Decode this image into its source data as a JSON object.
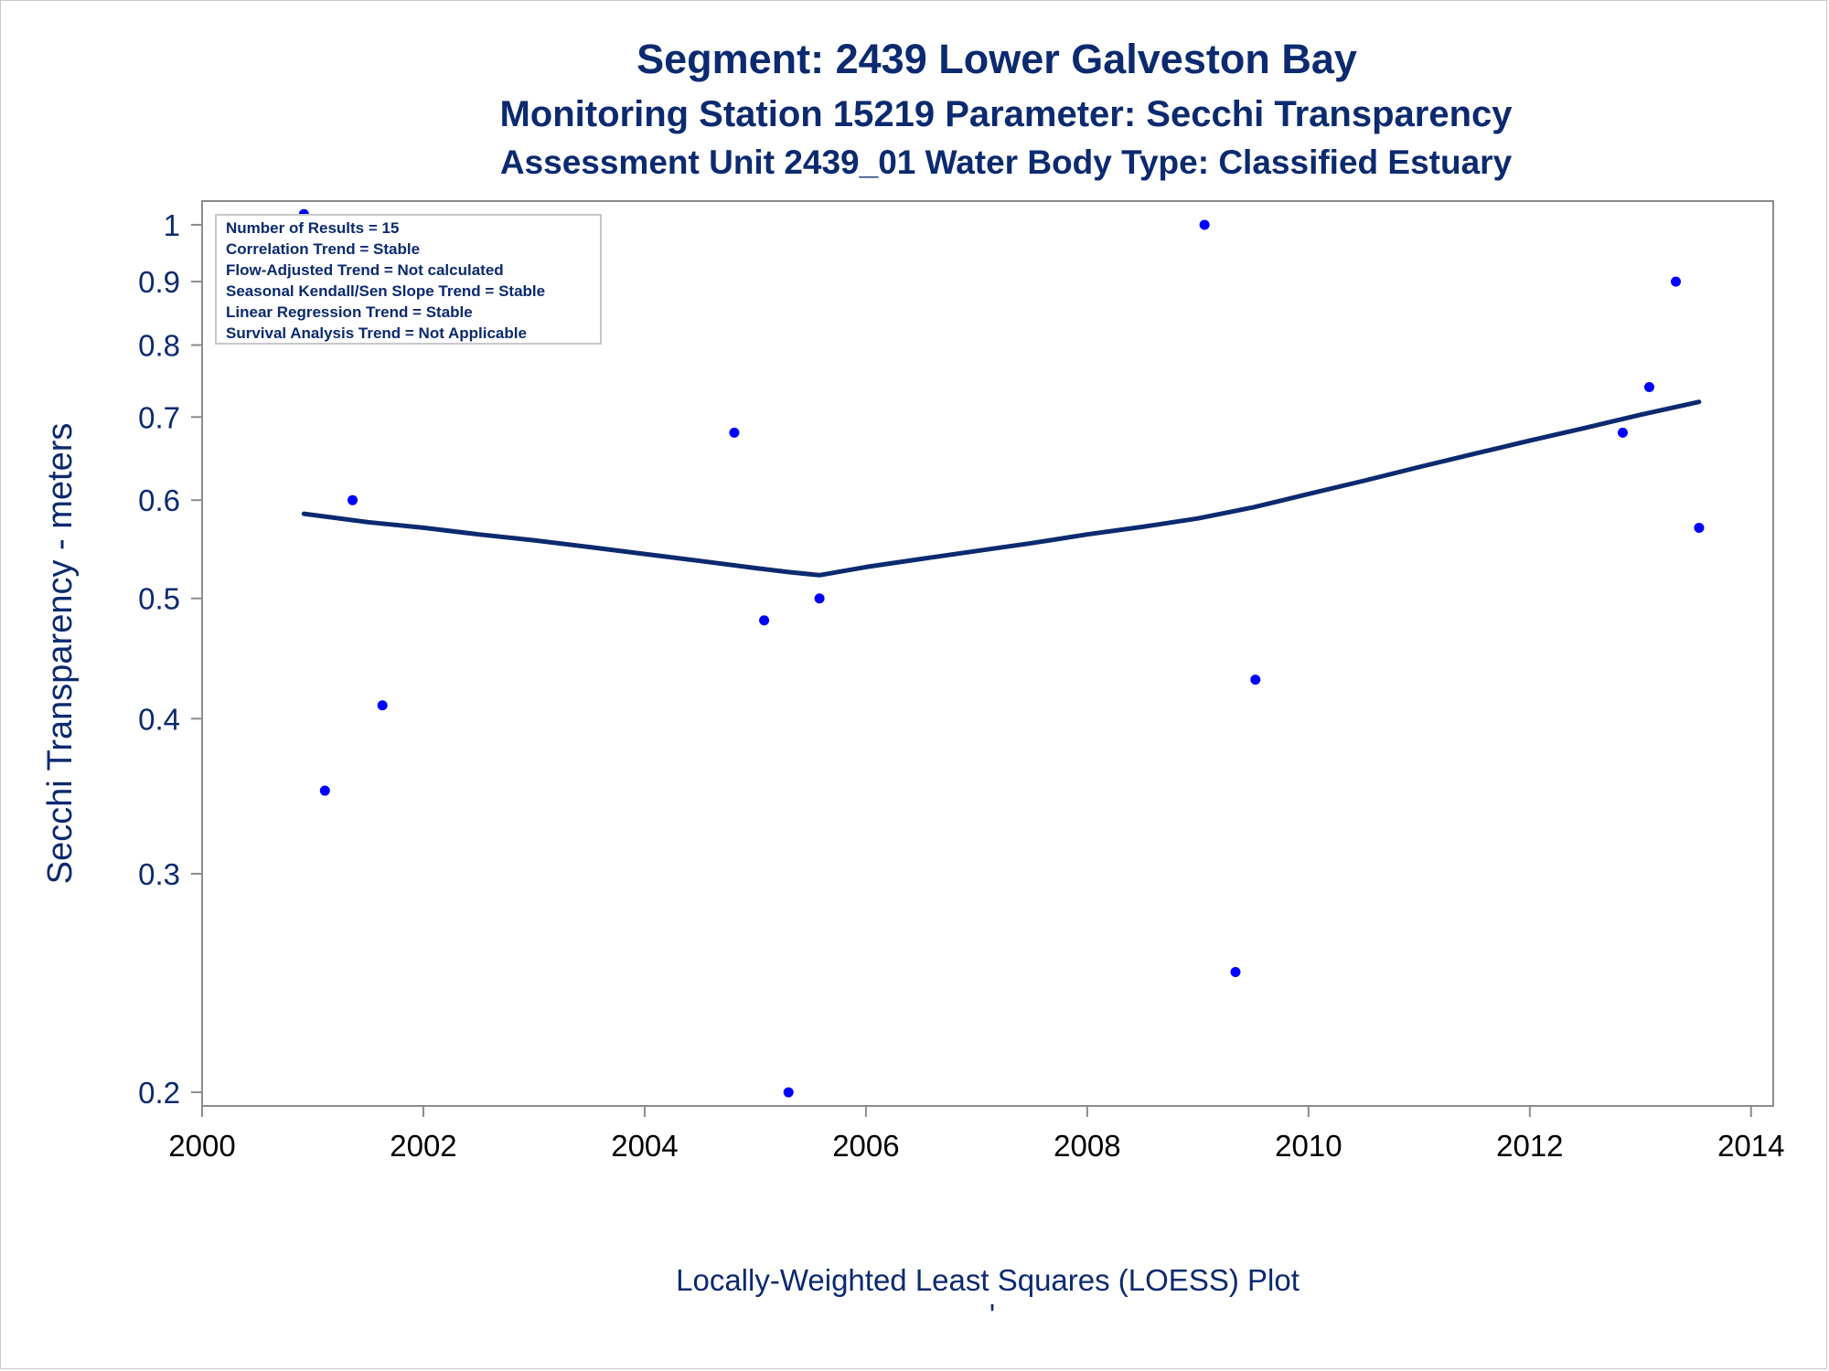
{
  "chart_data": {
    "type": "scatter",
    "title": "Segment: 2439  Lower Galveston Bay",
    "subtitle": "Monitoring Station 15219 Parameter: Secchi Transparency",
    "subtitle2": "Assessment Unit 2439_01   Water Body Type: Classified Estuary",
    "ylabel": "Secchi Transparency - meters",
    "footnote": "Locally-Weighted Least Squares (LOESS) Plot",
    "footnote_mark": "'",
    "xlim": [
      2000,
      2014.2
    ],
    "ylim": [
      0.195,
      1.045
    ],
    "y_scale": "log",
    "x_ticks": [
      2000,
      2002,
      2004,
      2006,
      2008,
      2010,
      2012,
      2014
    ],
    "x_tick_labels": [
      "2000",
      "2002",
      "2004",
      "2006",
      "2008",
      "2010",
      "2012",
      "2014"
    ],
    "y_ticks": [
      0.2,
      0.3,
      0.4,
      0.5,
      0.6,
      0.7,
      0.8,
      0.9,
      1
    ],
    "y_tick_labels": [
      "0.2",
      "0.3",
      "0.4",
      "0.5",
      "0.6",
      "0.7",
      "0.8",
      "0.9",
      "1"
    ],
    "grid": false,
    "colors": {
      "points": "#0000ff",
      "loess": "#0b2a6f",
      "text": "#0b2a6f",
      "axis": "#8c8c8c"
    },
    "points": [
      {
        "x": 2000.92,
        "y": 1.02
      },
      {
        "x": 2001.11,
        "y": 0.35
      },
      {
        "x": 2001.36,
        "y": 0.6
      },
      {
        "x": 2001.63,
        "y": 0.41
      },
      {
        "x": 2004.81,
        "y": 0.68
      },
      {
        "x": 2005.08,
        "y": 0.48
      },
      {
        "x": 2005.3,
        "y": 0.2
      },
      {
        "x": 2005.58,
        "y": 0.5
      },
      {
        "x": 2009.06,
        "y": 1.0
      },
      {
        "x": 2009.34,
        "y": 0.25
      },
      {
        "x": 2009.52,
        "y": 0.43
      },
      {
        "x": 2012.84,
        "y": 0.68
      },
      {
        "x": 2013.08,
        "y": 0.74
      },
      {
        "x": 2013.32,
        "y": 0.9
      },
      {
        "x": 2013.53,
        "y": 0.57
      }
    ],
    "loess": {
      "x": [
        2000.92,
        2001.5,
        2002.0,
        2002.5,
        2003.0,
        2003.5,
        2004.0,
        2004.5,
        2005.0,
        2005.3,
        2005.58,
        2006.0,
        2006.5,
        2007.0,
        2007.5,
        2008.0,
        2008.5,
        2009.0,
        2009.5,
        2010.0,
        2010.5,
        2011.0,
        2011.5,
        2012.0,
        2012.5,
        2013.0,
        2013.53
      ],
      "y": [
        0.585,
        0.576,
        0.57,
        0.563,
        0.557,
        0.55,
        0.543,
        0.536,
        0.529,
        0.525,
        0.522,
        0.53,
        0.538,
        0.546,
        0.554,
        0.563,
        0.571,
        0.58,
        0.592,
        0.607,
        0.622,
        0.638,
        0.654,
        0.67,
        0.686,
        0.703,
        0.72
      ]
    },
    "stats_box": [
      "Number of Results = 15",
      "Correlation Trend = Stable",
      "Flow-Adjusted Trend = Not calculated",
      "Seasonal Kendall/Sen Slope Trend = Stable",
      "Linear Regression Trend = Stable",
      "Survival Analysis Trend = Not Applicable"
    ],
    "stats_box_placement": "top-left"
  }
}
